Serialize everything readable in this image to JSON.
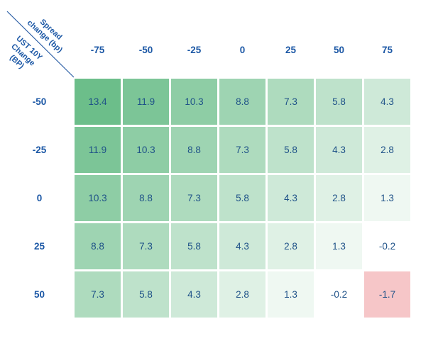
{
  "corner": {
    "x_axis_title": "Spread change (bp)",
    "x_axis_title_display": "Spread\nchange (bp)",
    "y_axis_title": "UST 10Y Change (BP)",
    "y_axis_title_display": "UST 10Y\nChange\n(BP)"
  },
  "style": {
    "label_color": "#1B57A5",
    "cell_text_color": "#1F5288",
    "divider_color": "#2A5DA5",
    "background": "#FFFFFF"
  },
  "chart_data": {
    "type": "heatmap",
    "title": "",
    "x_axis": {
      "label": "Spread change (bp)",
      "ticks": [
        "-75",
        "-50",
        "-25",
        "0",
        "25",
        "50",
        "75"
      ]
    },
    "y_axis": {
      "label": "UST 10Y Change (BP)",
      "ticks": [
        "-50",
        "-25",
        "0",
        "25",
        "50"
      ]
    },
    "values": [
      [
        13.4,
        11.9,
        10.3,
        8.8,
        7.3,
        5.8,
        4.3
      ],
      [
        11.9,
        10.3,
        8.8,
        7.3,
        5.8,
        4.3,
        2.8
      ],
      [
        10.3,
        8.8,
        7.3,
        5.8,
        4.3,
        2.8,
        1.3
      ],
      [
        8.8,
        7.3,
        5.8,
        4.3,
        2.8,
        1.3,
        -0.2
      ],
      [
        7.3,
        5.8,
        4.3,
        2.8,
        1.3,
        -0.2,
        -1.7
      ]
    ],
    "value_format": "one_decimal",
    "color_scale": {
      "max": 13.4,
      "mid": -0.2,
      "min": -1.7,
      "max_color": "#6CBE8A",
      "mid_color": "#FFFFFF",
      "min_color": "#F6C6C8"
    },
    "legend": "none",
    "grid_on": false,
    "gap_color": "#FFFFFF"
  }
}
